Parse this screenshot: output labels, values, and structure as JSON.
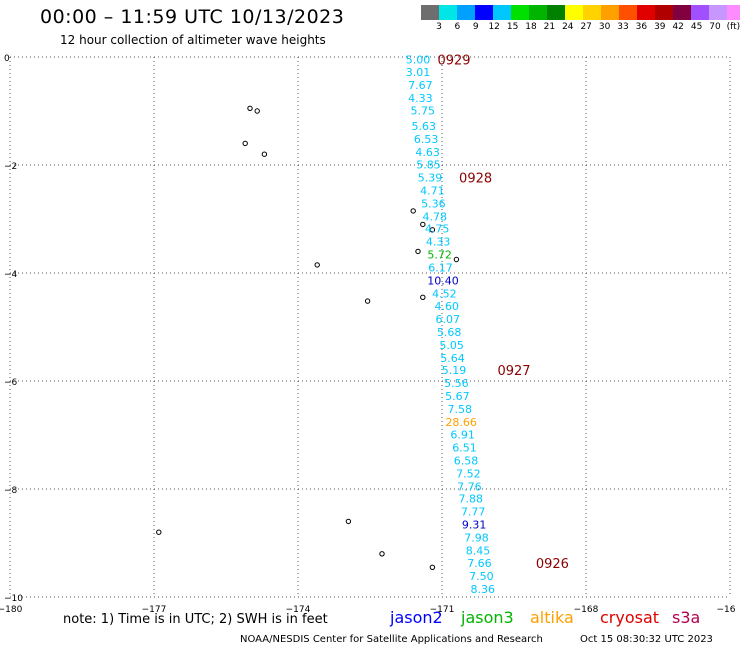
{
  "title": "00:00 – 11:59 UTC 10/13/2023",
  "subtitle": "12 hour collection of altimeter wave heights",
  "scale": {
    "colors": [
      "#6e6e6e",
      "#00e5e5",
      "#00a0ff",
      "#0000ff",
      "#00c8ff",
      "#00e000",
      "#00b400",
      "#008200",
      "#ffff00",
      "#ffd200",
      "#ffa000",
      "#ff5000",
      "#e00000",
      "#b00000",
      "#800040",
      "#a050ff",
      "#c896ff",
      "#ff8cff",
      "#000000"
    ],
    "labels": [
      "3",
      "6",
      "9",
      "12",
      "15",
      "18",
      "21",
      "24",
      "27",
      "30",
      "33",
      "36",
      "39",
      "42",
      "45",
      "70",
      "(ft)"
    ]
  },
  "axes": {
    "y_ticks": [
      "0",
      "−2",
      "−4",
      "−6",
      "−8",
      "−10"
    ],
    "x_ticks": [
      "−180",
      "−177",
      "−174",
      "−171",
      "−168",
      "−16"
    ]
  },
  "chart_data": {
    "type": "scatter",
    "xlim": [
      -180,
      -165
    ],
    "ylim": [
      -10,
      0
    ],
    "points": [
      {
        "lon": -171.5,
        "lat": -0.05,
        "label": "5.00",
        "color": "#00c8ff"
      },
      {
        "lon": -171.5,
        "lat": -0.28,
        "label": "3.01",
        "color": "#00c8ff"
      },
      {
        "lon": -171.45,
        "lat": -0.52,
        "label": "7.67",
        "color": "#00c8ff"
      },
      {
        "lon": -171.45,
        "lat": -0.76,
        "label": "4.33",
        "color": "#00c8ff"
      },
      {
        "lon": -171.4,
        "lat": -0.99,
        "label": "5.75",
        "color": "#00c8ff"
      },
      {
        "lon": -171.38,
        "lat": -1.28,
        "label": "5.63",
        "color": "#00c8ff"
      },
      {
        "lon": -171.33,
        "lat": -1.52,
        "label": "6.53",
        "color": "#00c8ff"
      },
      {
        "lon": -171.3,
        "lat": -1.76,
        "label": "4.63",
        "color": "#00c8ff"
      },
      {
        "lon": -171.28,
        "lat": -1.99,
        "label": "5.85",
        "color": "#00c8ff"
      },
      {
        "lon": -171.25,
        "lat": -2.23,
        "label": "5.39",
        "color": "#00c8ff"
      },
      {
        "lon": -171.2,
        "lat": -2.47,
        "label": "4.71",
        "color": "#00c8ff"
      },
      {
        "lon": -171.18,
        "lat": -2.71,
        "label": "5.36",
        "color": "#00c8ff"
      },
      {
        "lon": -171.15,
        "lat": -2.95,
        "label": "4.78",
        "color": "#00c8ff"
      },
      {
        "lon": -171.1,
        "lat": -3.18,
        "label": "4.75",
        "color": "#00c8ff"
      },
      {
        "lon": -171.08,
        "lat": -3.42,
        "label": "4.33",
        "color": "#00c8ff"
      },
      {
        "lon": -171.05,
        "lat": -3.66,
        "label": "5.72",
        "color": "#00b400"
      },
      {
        "lon": -171.03,
        "lat": -3.9,
        "label": "6.17",
        "color": "#00c8ff"
      },
      {
        "lon": -170.98,
        "lat": -4.14,
        "label": "10.40",
        "color": "#0000c8"
      },
      {
        "lon": -170.95,
        "lat": -4.38,
        "label": "4.52",
        "color": "#00c8ff"
      },
      {
        "lon": -170.9,
        "lat": -4.61,
        "label": "4.60",
        "color": "#00c8ff"
      },
      {
        "lon": -170.88,
        "lat": -4.85,
        "label": "6.07",
        "color": "#00c8ff"
      },
      {
        "lon": -170.85,
        "lat": -5.09,
        "label": "5.68",
        "color": "#00c8ff"
      },
      {
        "lon": -170.8,
        "lat": -5.33,
        "label": "5.05",
        "color": "#00c8ff"
      },
      {
        "lon": -170.78,
        "lat": -5.57,
        "label": "5.64",
        "color": "#00c8ff"
      },
      {
        "lon": -170.75,
        "lat": -5.8,
        "label": "5.19",
        "color": "#00c8ff"
      },
      {
        "lon": -170.7,
        "lat": -6.04,
        "label": "5.56",
        "color": "#00c8ff"
      },
      {
        "lon": -170.68,
        "lat": -6.28,
        "label": "5.67",
        "color": "#00c8ff"
      },
      {
        "lon": -170.63,
        "lat": -6.52,
        "label": "7.58",
        "color": "#00c8ff"
      },
      {
        "lon": -170.6,
        "lat": -6.76,
        "label": "28.66",
        "color": "#ffa000"
      },
      {
        "lon": -170.57,
        "lat": -6.99,
        "label": "6.91",
        "color": "#00c8ff"
      },
      {
        "lon": -170.53,
        "lat": -7.23,
        "label": "6.51",
        "color": "#00c8ff"
      },
      {
        "lon": -170.5,
        "lat": -7.47,
        "label": "6.58",
        "color": "#00c8ff"
      },
      {
        "lon": -170.45,
        "lat": -7.71,
        "label": "7.52",
        "color": "#00c8ff"
      },
      {
        "lon": -170.43,
        "lat": -7.95,
        "label": "7.76",
        "color": "#00c8ff"
      },
      {
        "lon": -170.4,
        "lat": -8.18,
        "label": "7.88",
        "color": "#00c8ff"
      },
      {
        "lon": -170.35,
        "lat": -8.42,
        "label": "7.77",
        "color": "#00c8ff"
      },
      {
        "lon": -170.33,
        "lat": -8.66,
        "label": "9.31",
        "color": "#0000c8"
      },
      {
        "lon": -170.28,
        "lat": -8.9,
        "label": "7.98",
        "color": "#00c8ff"
      },
      {
        "lon": -170.25,
        "lat": -9.14,
        "label": "8.45",
        "color": "#00c8ff"
      },
      {
        "lon": -170.22,
        "lat": -9.37,
        "label": "7.66",
        "color": "#00c8ff"
      },
      {
        "lon": -170.18,
        "lat": -9.61,
        "label": "7.50",
        "color": "#00c8ff"
      },
      {
        "lon": -170.15,
        "lat": -9.85,
        "label": "8.36",
        "color": "#00c8ff"
      }
    ],
    "time_labels": [
      {
        "lon": -170.75,
        "lat": -0.05,
        "label": "0929"
      },
      {
        "lon": -170.3,
        "lat": -2.23,
        "label": "0928"
      },
      {
        "lon": -169.5,
        "lat": -5.8,
        "label": "0927"
      },
      {
        "lon": -168.7,
        "lat": -9.37,
        "label": "0926"
      }
    ],
    "islands": [
      {
        "lon": -175.0,
        "lat": -0.95
      },
      {
        "lon": -174.85,
        "lat": -1.0
      },
      {
        "lon": -175.1,
        "lat": -1.6
      },
      {
        "lon": -174.7,
        "lat": -1.8
      },
      {
        "lon": -173.6,
        "lat": -3.85
      },
      {
        "lon": -172.55,
        "lat": -4.52
      },
      {
        "lon": -171.6,
        "lat": -2.85
      },
      {
        "lon": -171.4,
        "lat": -3.1
      },
      {
        "lon": -171.2,
        "lat": -3.2
      },
      {
        "lon": -171.5,
        "lat": -3.6
      },
      {
        "lon": -170.7,
        "lat": -3.75
      },
      {
        "lon": -171.4,
        "lat": -4.45
      },
      {
        "lon": -172.95,
        "lat": -8.6
      },
      {
        "lon": -172.25,
        "lat": -9.2
      },
      {
        "lon": -171.2,
        "lat": -9.45
      },
      {
        "lon": -176.9,
        "lat": -8.8
      }
    ]
  },
  "note": "note:  1) Time is in UTC;  2) SWH is in feet",
  "satellites": [
    {
      "name": "jason2",
      "color": "#0000ff"
    },
    {
      "name": "jason3",
      "color": "#00b400"
    },
    {
      "name": "altika",
      "color": "#ffa000"
    },
    {
      "name": "cryosat",
      "color": "#e00000"
    },
    {
      "name": "s3a",
      "color": "#b40050"
    }
  ],
  "credit": "NOAA/NESDIS Center for Satellite Applications and Research",
  "timestamp": "Oct 15 08:30:32 UTC 2023"
}
